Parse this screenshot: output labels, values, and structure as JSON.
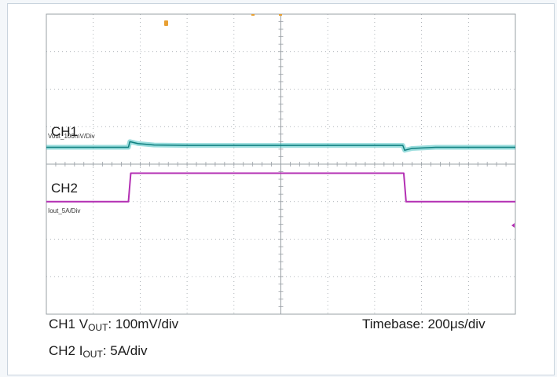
{
  "chart_data": {
    "type": "line",
    "title": "",
    "xlabel": "",
    "ylabel": "",
    "grid": true,
    "x_divisions": 10,
    "y_divisions": 8,
    "colors": {
      "ch1": "#1fb3b3",
      "ch2": "#b32fb3",
      "grid": "#9aa0a6",
      "marker": "#e8a033"
    },
    "series": [
      {
        "name": "CH1",
        "label": "Vout_100mV/Div",
        "color": "#1fb3b3",
        "level_div": 3.5,
        "x": [
          0,
          1.75,
          1.78,
          1.95,
          2.3,
          3.0,
          7.6,
          7.64,
          7.8,
          8.3,
          10
        ],
        "y": [
          3.55,
          3.55,
          3.4,
          3.45,
          3.49,
          3.5,
          3.5,
          3.63,
          3.58,
          3.55,
          3.55
        ]
      },
      {
        "name": "CH2",
        "label": "Iout_5A/Div",
        "color": "#b32fb3",
        "level_div": 5.0,
        "x": [
          0,
          1.75,
          1.8,
          7.62,
          7.67,
          10
        ],
        "y": [
          5.0,
          5.0,
          4.24,
          4.24,
          5.0,
          5.0
        ]
      }
    ]
  },
  "captions": {
    "ch1": {
      "prefix": "CH1 V",
      "sub": "OUT",
      "suffix": ": 100mV/div"
    },
    "ch2": {
      "prefix": "CH2 I",
      "sub": "OUT",
      "suffix": ": 5A/div"
    },
    "timebase": "Timebase: 200μs/div"
  }
}
